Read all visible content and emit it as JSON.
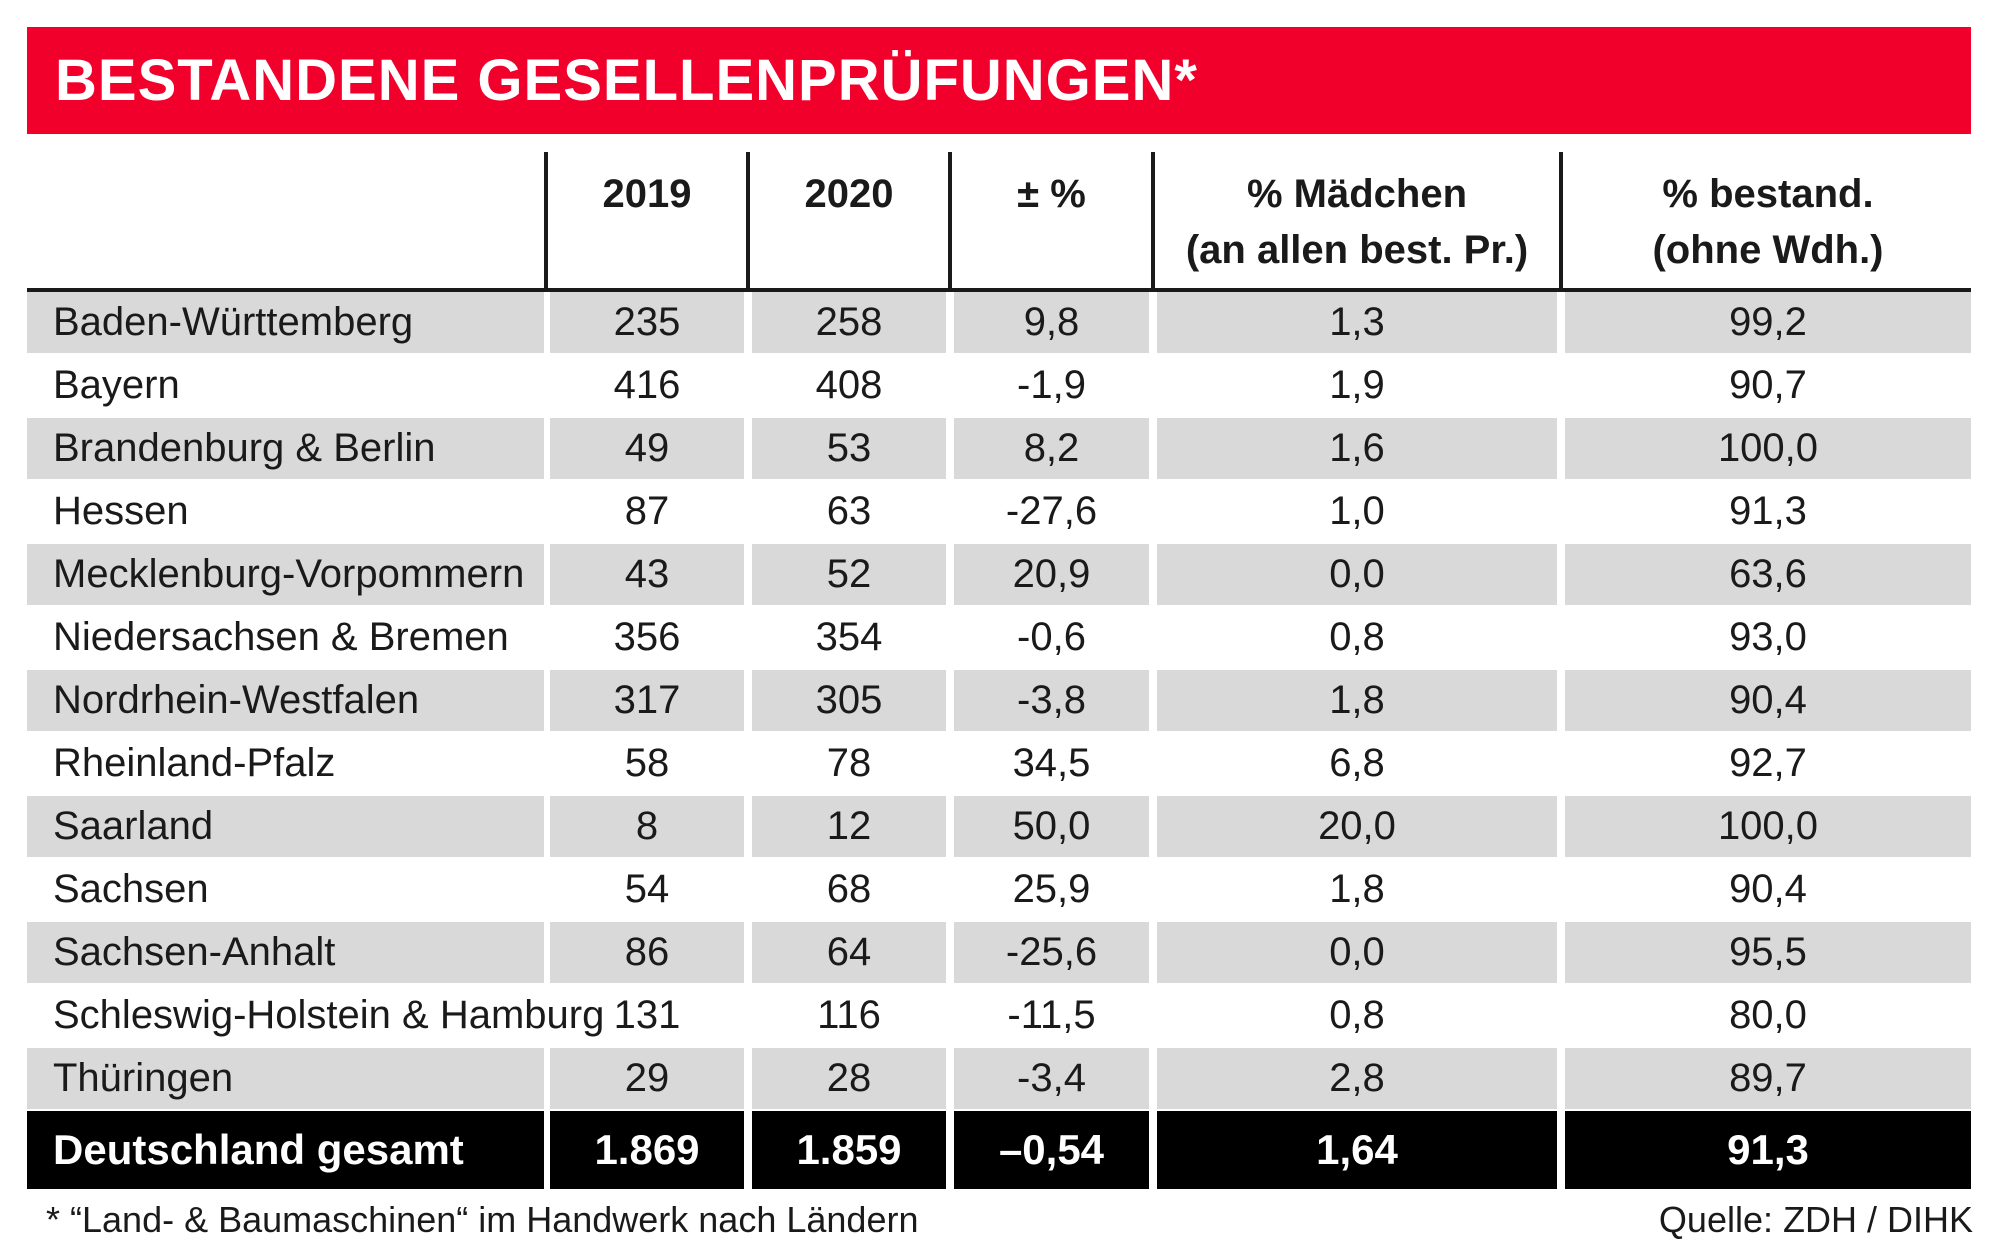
{
  "title": "BESTANDENE GESELLENPRÜFUNGEN*",
  "chart_data": {
    "type": "table",
    "title": "BESTANDENE GESELLENPRÜFUNGEN*",
    "columns": [
      {
        "key": "name",
        "lines": [
          "",
          ""
        ]
      },
      {
        "key": "y2019",
        "lines": [
          "2019",
          ""
        ]
      },
      {
        "key": "y2020",
        "lines": [
          "2020",
          ""
        ]
      },
      {
        "key": "change",
        "lines": [
          "± %",
          ""
        ]
      },
      {
        "key": "girls",
        "lines": [
          "% Mädchen",
          "(an allen best. Pr.)"
        ]
      },
      {
        "key": "passed",
        "lines": [
          "% bestand.",
          "(ohne Wdh.)"
        ]
      }
    ],
    "rows": [
      [
        "Baden-Württemberg",
        "235",
        "258",
        "9,8",
        "1,3",
        "99,2"
      ],
      [
        "Bayern",
        "416",
        "408",
        "-1,9",
        "1,9",
        "90,7"
      ],
      [
        "Brandenburg & Berlin",
        "49",
        "53",
        "8,2",
        "1,6",
        "100,0"
      ],
      [
        "Hessen",
        "87",
        "63",
        "-27,6",
        "1,0",
        "91,3"
      ],
      [
        "Mecklenburg-Vorpommern",
        "43",
        "52",
        "20,9",
        "0,0",
        "63,6"
      ],
      [
        "Niedersachsen & Bremen",
        "356",
        "354",
        "-0,6",
        "0,8",
        "93,0"
      ],
      [
        "Nordrhein-Westfalen",
        "317",
        "305",
        "-3,8",
        "1,8",
        "90,4"
      ],
      [
        "Rheinland-Pfalz",
        "58",
        "78",
        "34,5",
        "6,8",
        "92,7"
      ],
      [
        "Saarland",
        "8",
        "12",
        "50,0",
        "20,0",
        "100,0"
      ],
      [
        "Sachsen",
        "54",
        "68",
        "25,9",
        "1,8",
        "90,4"
      ],
      [
        "Sachsen-Anhalt",
        "86",
        "64",
        "-25,6",
        "0,0",
        "95,5"
      ],
      [
        "Schleswig-Holstein & Hamburg",
        "131",
        "116",
        "-11,5",
        "0,8",
        "80,0"
      ],
      [
        "Thüringen",
        "29",
        "28",
        "-3,4",
        "2,8",
        "89,7"
      ]
    ],
    "total": [
      "Deutschland gesamt",
      "1.869",
      "1.859",
      "–0,54",
      "1,64",
      "91,3"
    ]
  },
  "footnote": "* “Land- & Baumaschinen“ im Handwerk nach Ländern",
  "source": "Quelle: ZDH / DIHK",
  "colors": {
    "banner": "#f0002b",
    "shade": "#d9d9d9",
    "total": "#000000"
  }
}
